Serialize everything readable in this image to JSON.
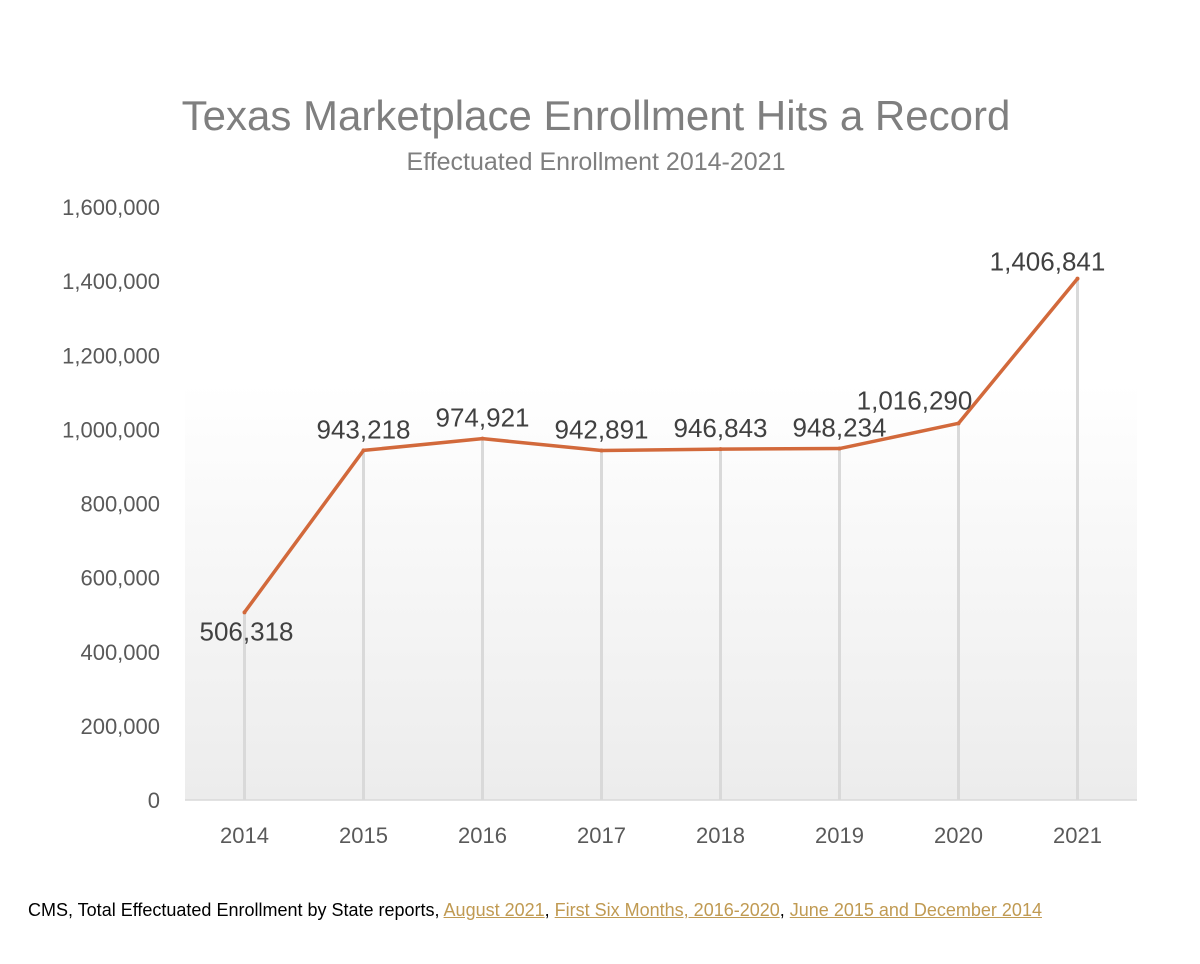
{
  "colors": {
    "line": "#d2693b",
    "text": "#595959",
    "title": "#7f7f7f",
    "link": "#c09a52"
  },
  "chart_data": {
    "type": "line",
    "title": "Texas Marketplace Enrollment Hits a Record",
    "subtitle": "Effectuated Enrollment 2014-2021",
    "categories": [
      "2014",
      "2015",
      "2016",
      "2017",
      "2018",
      "2019",
      "2020",
      "2021"
    ],
    "series": [
      {
        "values": [
          506318,
          943218,
          974921,
          942891,
          946843,
          948234,
          1016290,
          1406841
        ]
      }
    ],
    "data_labels": [
      "506,318",
      "943,218",
      "974,921",
      "942,891",
      "946,843",
      "948,234",
      "1,016,290",
      "1,406,841"
    ],
    "y_ticks": [
      0,
      200000,
      400000,
      600000,
      800000,
      1000000,
      1200000,
      1400000,
      1600000
    ],
    "y_tick_labels": [
      "0",
      "200,000",
      "400,000",
      "600,000",
      "800,000",
      "1,000,000",
      "1,200,000",
      "1,400,000",
      "1,600,000"
    ],
    "ylim": [
      0,
      1600000
    ],
    "xlabel": "",
    "ylabel": "",
    "grid": false,
    "drop_lines": true
  },
  "source": {
    "prefix": "CMS, Total Effectuated Enrollment by State reports, ",
    "links": [
      "August 2021",
      "First Six Months, 2016-2020",
      "June 2015 and December 2014"
    ],
    "separator": ", "
  }
}
